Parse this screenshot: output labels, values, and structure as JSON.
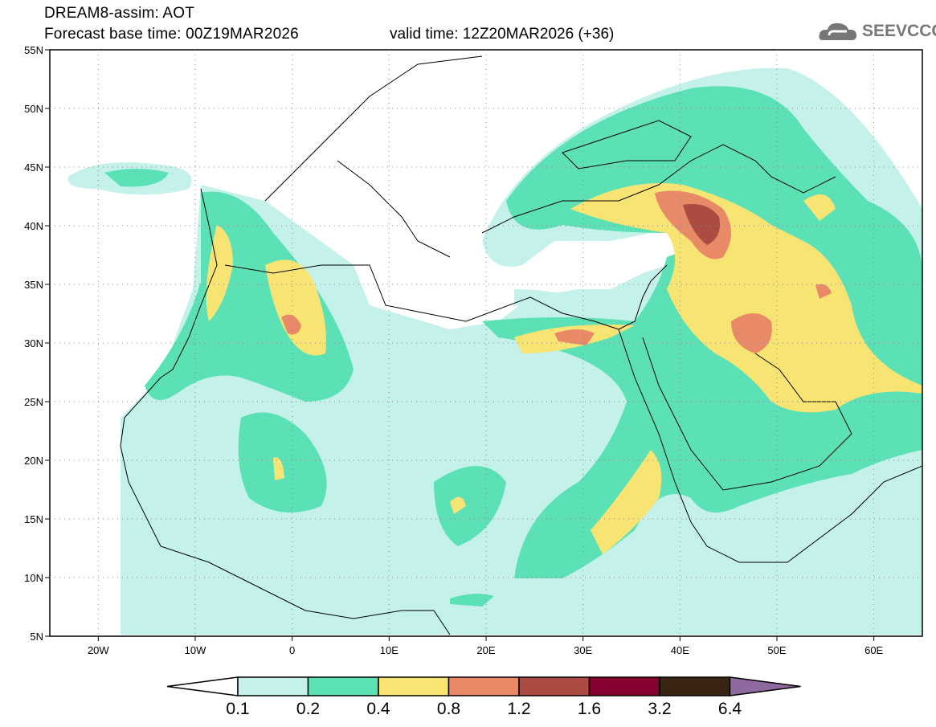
{
  "header": {
    "title": "DREAM8-assim: AOT",
    "base_time": "Forecast base time: 00Z19MAR2026",
    "valid_time": "valid time: 12Z20MAR2026 (+36)"
  },
  "logo": {
    "text": "SEEVCCC",
    "icon": "cloud-icon"
  },
  "map": {
    "lon_range": [
      -25,
      65
    ],
    "lat_range": [
      5,
      55
    ],
    "lat_labels": [
      "5N",
      "10N",
      "15N",
      "20N",
      "25N",
      "30N",
      "35N",
      "40N",
      "45N",
      "50N",
      "55N"
    ],
    "lon_labels": [
      "20W",
      "10W",
      "0",
      "10E",
      "20E",
      "30E",
      "40E",
      "50E",
      "60E"
    ]
  },
  "colorbar": {
    "levels": [
      "0.1",
      "0.2",
      "0.4",
      "0.8",
      "1.2",
      "1.6",
      "3.2",
      "6.4"
    ],
    "colors": [
      "#ffffff",
      "#c4f2ea",
      "#5ce1b7",
      "#f8e473",
      "#e88a68",
      "#ab4b42",
      "#850030",
      "#3a2414",
      "#8f6aa0"
    ]
  }
}
